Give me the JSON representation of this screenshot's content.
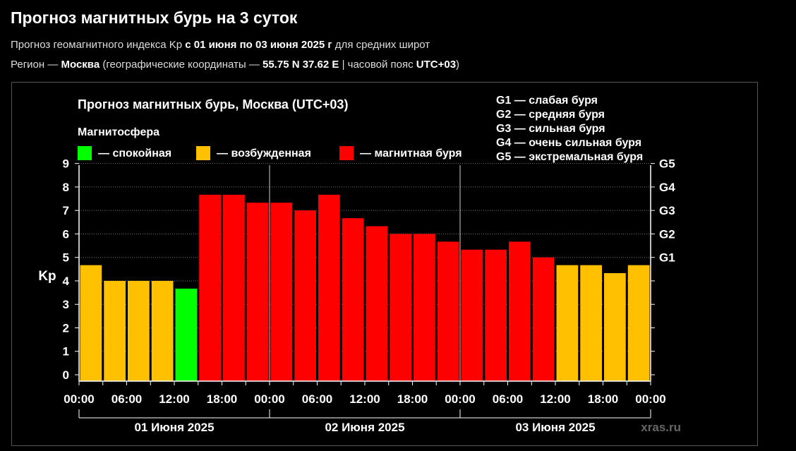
{
  "header": {
    "title": "Прогноз магнитных бурь на 3 суток",
    "line1_prefix": "Прогноз геомагнитного индекса Kp ",
    "line1_bold": "с 01 июня по 03 июня 2025 г",
    "line1_suffix": " для средних широт",
    "line2_prefix": "Регион — ",
    "line2_region": "Москва",
    "line2_mid": " (географические координаты — ",
    "line2_coords": "55.75 N 37.62 E",
    "line2_mid2": " | часовой пояс ",
    "line2_tz": "UTC+03",
    "line2_suffix": ")"
  },
  "chart_data": {
    "type": "bar",
    "title": "Прогноз магнитных бурь, Москва (UTC+03)",
    "legend_title": "Магнитосфера",
    "legend": [
      {
        "label": "— спокойная",
        "color": "#00ff00"
      },
      {
        "label": "— возбужденная",
        "color": "#ffc000"
      },
      {
        "label": "— магнитная буря",
        "color": "#ff0000"
      }
    ],
    "storm_scale": [
      "G1 — слабая буря",
      "G2 — средняя буря",
      "G3 — сильная буря",
      "G4 — очень сильная буря",
      "G5 — экстремальная буря"
    ],
    "ylabel": "Kp",
    "ylim": [
      0,
      9
    ],
    "yticks": [
      "0",
      "1",
      "2",
      "3",
      "4",
      "5",
      "6",
      "7",
      "8",
      "9"
    ],
    "right_ticks": [
      {
        "value": 5,
        "label": "G1"
      },
      {
        "value": 6,
        "label": "G2"
      },
      {
        "value": 7,
        "label": "G3"
      },
      {
        "value": 8,
        "label": "G4"
      },
      {
        "value": 9,
        "label": "G5"
      }
    ],
    "xtick_labels": [
      "00:00",
      "06:00",
      "12:00",
      "18:00",
      "00:00",
      "06:00",
      "12:00",
      "18:00",
      "00:00",
      "06:00",
      "12:00",
      "18:00",
      "00:00"
    ],
    "days": [
      "01 Июня 2025",
      "02 Июня 2025",
      "03 Июня 2025"
    ],
    "values": [
      4.67,
      4.0,
      4.0,
      4.0,
      3.67,
      7.67,
      7.67,
      7.33,
      7.33,
      7.0,
      7.67,
      6.67,
      6.33,
      6.0,
      6.0,
      5.67,
      5.33,
      5.33,
      5.67,
      5.0,
      4.67,
      4.67,
      4.33,
      4.67
    ],
    "colors": {
      "quiet": "#00ff00",
      "active": "#ffc000",
      "storm": "#ff0000"
    },
    "grid": true,
    "watermark": "xras.ru"
  }
}
